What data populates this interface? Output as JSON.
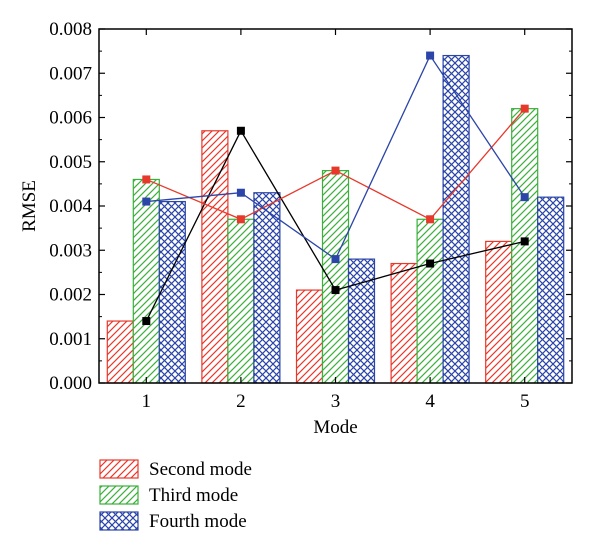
{
  "chart_data": {
    "type": "bar",
    "xlabel": "Mode",
    "ylabel": "RMSE",
    "ylim": [
      0,
      0.008
    ],
    "yticks": [
      "0.000",
      "0.001",
      "0.002",
      "0.003",
      "0.004",
      "0.005",
      "0.006",
      "0.007",
      "0.008"
    ],
    "categories": [
      "1",
      "2",
      "3",
      "4",
      "5"
    ],
    "legend_position": "bottom",
    "series": [
      {
        "name": "Second mode",
        "color": "#e8382b",
        "pattern": "diagonal-hatch",
        "values": [
          0.0014,
          0.0057,
          0.0021,
          0.0027,
          0.0032
        ]
      },
      {
        "name": "Third mode",
        "color": "#3ab03a",
        "pattern": "diagonal-hatch",
        "values": [
          0.0046,
          0.0037,
          0.0048,
          0.0037,
          0.0062
        ]
      },
      {
        "name": "Fourth mode",
        "color": "#2b45a8",
        "pattern": "cross-hatch",
        "values": [
          0.0041,
          0.0043,
          0.0028,
          0.0074,
          0.0042
        ]
      }
    ],
    "overlay_lines": [
      {
        "series": "Second mode",
        "color": "#000000",
        "marker": "square",
        "values": [
          0.0014,
          0.0057,
          0.0021,
          0.0027,
          0.0032
        ]
      },
      {
        "series": "Third mode",
        "color": "#e8382b",
        "marker": "square",
        "values": [
          0.0046,
          0.0037,
          0.0048,
          0.0037,
          0.0062
        ]
      },
      {
        "series": "Fourth mode",
        "color": "#2b45a8",
        "marker": "square",
        "values": [
          0.0041,
          0.0043,
          0.0028,
          0.0074,
          0.0042
        ]
      }
    ],
    "grid": false
  }
}
